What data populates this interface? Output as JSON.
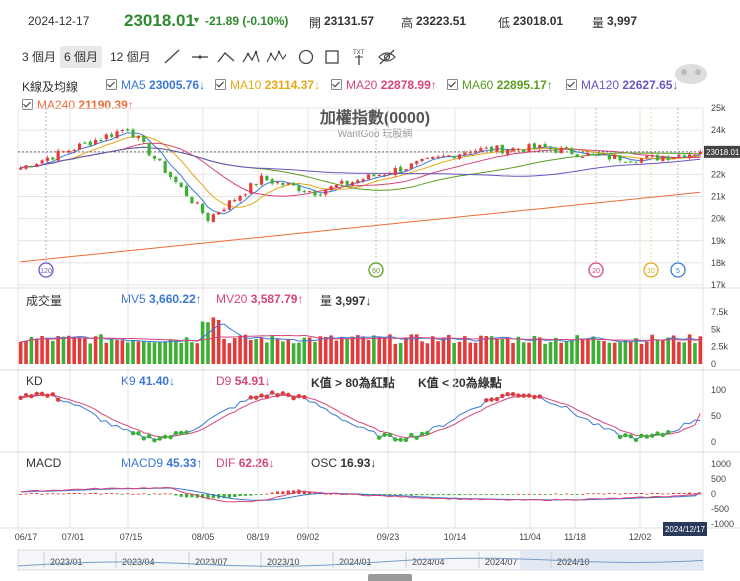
{
  "header": {
    "date": "2024-12-17",
    "price": "23018.01",
    "change": "-21.89 (-0.10%)",
    "open_label": "開",
    "open": "23131.57",
    "high_label": "高",
    "high": "23223.51",
    "low_label": "低",
    "low": "23018.01",
    "vol_label": "量",
    "vol": "3,997"
  },
  "toolbar": {
    "tabs": [
      "3 個月",
      "6 個月",
      "12 個月"
    ],
    "active_tab": "6 個月",
    "tools": [
      "line-tool-icon",
      "hline-tool-icon",
      "wave-tool-icon",
      "pattern-tool-icon",
      "multi-pattern-tool-icon",
      "circle-tool-icon",
      "square-tool-icon",
      "text-tool-icon",
      "hide-icon"
    ]
  },
  "legend_k": {
    "title": "K線及均線",
    "items": [
      {
        "label": "MA5",
        "value": "23005.76↓",
        "color": "#3a78d6"
      },
      {
        "label": "MA10",
        "value": "23114.37↓",
        "color": "#e6a817"
      },
      {
        "label": "MA20",
        "value": "22878.99↑",
        "color": "#d6457a"
      },
      {
        "label": "MA60",
        "value": "22895.17↑",
        "color": "#5a9e1e"
      },
      {
        "label": "MA120",
        "value": "22627.65↓",
        "color": "#6b55c0"
      },
      {
        "label": "MA240",
        "value": "21190.39↑",
        "color": "#ee6d3a"
      }
    ]
  },
  "chart_title": "加權指數(0000)",
  "watermark": "WantGoo 玩股網",
  "legend_vol": {
    "title": "成交量",
    "mv5_label": "MV5",
    "mv5": "3,660.22↑",
    "mv20_label": "MV20",
    "mv20": "3,587.79↑",
    "vol_label": "量",
    "vol": "3,997↓"
  },
  "legend_kd": {
    "title": "KD",
    "k_label": "K9",
    "k": "41.40↓",
    "d_label": "D9",
    "d": "54.91↓",
    "note1": "K值 > 80為紅點",
    "note2": "K值 < 20為綠點"
  },
  "legend_macd": {
    "title": "MACD",
    "macd_label": "MACD9",
    "macd": "45.33↑",
    "dif_label": "DIF",
    "dif": "62.26↓",
    "osc_label": "OSC",
    "osc": "16.93↓"
  },
  "price_axis": [
    "25k",
    "24k",
    "23k",
    "22k",
    "21k",
    "20k",
    "19k",
    "18k",
    "17k"
  ],
  "price_tag": "23018.01",
  "vol_axis": [
    "7.5k",
    "5k",
    "2.5k",
    "0"
  ],
  "kd_axis": [
    "100",
    "50",
    "0"
  ],
  "macd_axis": [
    "1000",
    "500",
    "0",
    "-500",
    "-1000"
  ],
  "date_axis": [
    "06/17",
    "07/01",
    "07/15",
    "08/05",
    "08/19",
    "09/02",
    "09/23",
    "10/14",
    "11/04",
    "11/18",
    "12/02"
  ],
  "date_tag": "2024/12/17",
  "nav_axis": [
    "2023/01",
    "2023/04",
    "2023/07",
    "2023/10",
    "2024/01",
    "2024/04",
    "2024/07",
    "2024/10"
  ],
  "markers": [
    {
      "label": "120",
      "color": "#6b55c0"
    },
    {
      "label": "60",
      "color": "#5a9e1e"
    },
    {
      "label": "20",
      "color": "#d6457a"
    },
    {
      "label": "10",
      "color": "#e6a817"
    },
    {
      "label": "5",
      "color": "#3a78d6"
    }
  ],
  "chart_data": {
    "type": "candlestick",
    "title": "加權指數(0000)",
    "dates": [
      "06/17",
      "07/01",
      "07/15",
      "08/05",
      "08/19",
      "09/02",
      "09/23",
      "10/14",
      "11/04",
      "11/18",
      "12/02",
      "12/17"
    ],
    "close": [
      22300,
      23100,
      24100,
      20000,
      21800,
      21200,
      22200,
      23100,
      23200,
      22800,
      22700,
      23018
    ],
    "ma240_start": 18050,
    "ma240_end": 21190,
    "ylim": [
      17000,
      25000
    ],
    "volume_ylim": [
      0,
      7500
    ],
    "volume_avg": 3600,
    "kd": {
      "k_last": 41.4,
      "d_last": 54.91,
      "ylim": [
        0,
        100
      ]
    },
    "macd": {
      "macd_last": 45.33,
      "dif_last": 62.26,
      "osc_last": 16.93,
      "ylim": [
        -1000,
        1000
      ]
    }
  },
  "colors": {
    "up": "#e23b3b",
    "down": "#3bb033",
    "grid": "#e4e4e4",
    "accent": "#2d7a2d"
  }
}
